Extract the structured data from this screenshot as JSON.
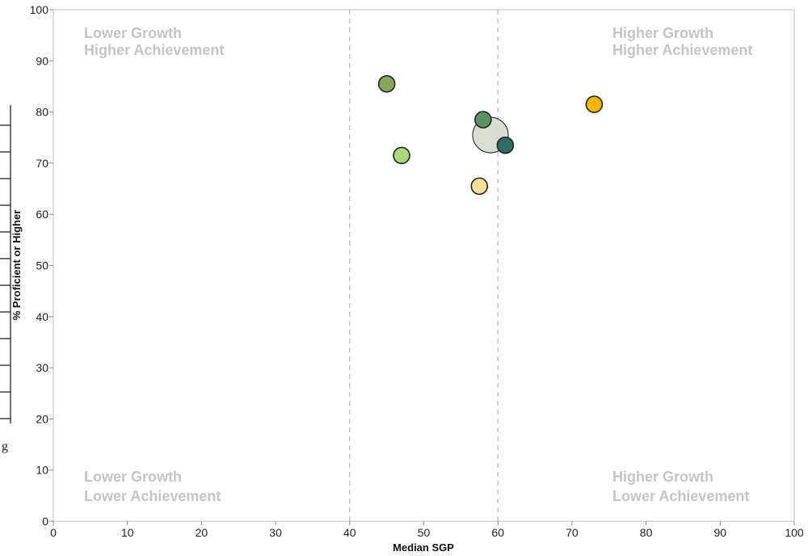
{
  "chart_data": {
    "type": "scatter",
    "title": "",
    "xlabel": "Median SGP",
    "ylabel": "% Proficient or Higher",
    "xlim": [
      0,
      100
    ],
    "ylim": [
      0,
      100
    ],
    "xticks": [
      0,
      10,
      20,
      30,
      40,
      50,
      60,
      70,
      80,
      90,
      100
    ],
    "yticks": [
      0,
      10,
      20,
      30,
      40,
      50,
      60,
      70,
      80,
      90,
      100
    ],
    "reference_lines_x": [
      40,
      60
    ],
    "grid": false,
    "legend": "none",
    "quadrant_labels": {
      "top_left": [
        "Lower Growth",
        "Higher Achievement"
      ],
      "top_right": [
        "Higher Growth",
        "Higher Achievement"
      ],
      "bottom_left": [
        "Lower Growth",
        "Lower Achievement"
      ],
      "bottom_right": [
        "Higher Growth",
        "Lower Achievement"
      ]
    },
    "points": [
      {
        "x": 45,
        "y": 85.5,
        "color": "#86a75a",
        "size": "small"
      },
      {
        "x": 58,
        "y": 78.5,
        "color": "#5a9460",
        "size": "small"
      },
      {
        "x": 73,
        "y": 81.5,
        "color": "#f2b705",
        "size": "small"
      },
      {
        "x": 59,
        "y": 75.5,
        "color": "#d4dcc9",
        "size": "large"
      },
      {
        "x": 61,
        "y": 73.5,
        "color": "#2e6a68",
        "size": "small"
      },
      {
        "x": 47,
        "y": 71.5,
        "color": "#a8d97a",
        "size": "small"
      },
      {
        "x": 57.5,
        "y": 65.5,
        "color": "#f7df98",
        "size": "small"
      }
    ]
  },
  "page_edge": {
    "glyph": "g"
  }
}
